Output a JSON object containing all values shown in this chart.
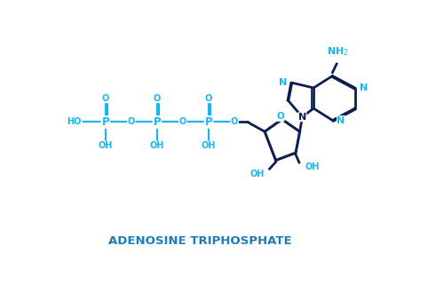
{
  "title": "ADENOSINE TRIPHOSPHATE",
  "title_color": "#1a7bbf",
  "title_fontsize": 9.5,
  "bg_color": "#ffffff",
  "light_blue": "#1ab4f0",
  "dark_blue": "#0d1f4f",
  "figsize": [
    5.0,
    3.21
  ],
  "dpi": 100,
  "xlim": [
    0,
    10
  ],
  "ylim": [
    0,
    6.42
  ]
}
